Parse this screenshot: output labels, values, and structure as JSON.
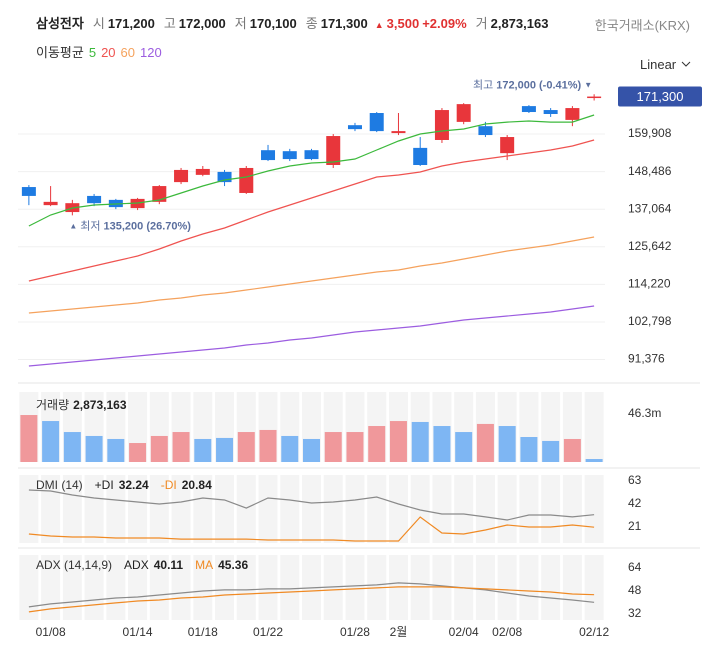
{
  "header": {
    "name": "삼성전자",
    "items": [
      {
        "label": "시",
        "value": "171,200"
      },
      {
        "label": "고",
        "value": "172,000"
      },
      {
        "label": "저",
        "value": "170,100"
      },
      {
        "label": "종",
        "value": "171,300"
      }
    ],
    "change": "3,500",
    "change_pct": "+2.09%",
    "volume_label": "거",
    "volume": "2,873,163",
    "exchange": "한국거래소(KRX)"
  },
  "scale_menu": "Linear",
  "chart_data": [
    {
      "type": "candlestick",
      "legend_title": "이동평균",
      "categories": [
        null,
        "01/08",
        null,
        null,
        null,
        "01/14",
        null,
        null,
        "01/18",
        null,
        null,
        "01/22",
        null,
        null,
        null,
        "01/28",
        null,
        "2월",
        null,
        null,
        "02/04",
        null,
        "02/08",
        null,
        null,
        null,
        "02/12"
      ],
      "open": [
        143800,
        138300,
        136200,
        141100,
        139900,
        137400,
        139300,
        145300,
        147500,
        148400,
        142000,
        155000,
        154700,
        155000,
        150500,
        162600,
        166300,
        160200,
        155700,
        158100,
        163600,
        162300,
        154100,
        168400,
        167200,
        164200,
        171200
      ],
      "high": [
        144400,
        144100,
        139900,
        141700,
        140200,
        140500,
        144400,
        149600,
        150200,
        149000,
        150200,
        156600,
        155400,
        155400,
        159900,
        163300,
        166600,
        166300,
        159000,
        167800,
        169300,
        163600,
        159600,
        168700,
        167800,
        168400,
        172000
      ],
      "low": [
        138300,
        138000,
        135200,
        138000,
        137100,
        136800,
        138600,
        144700,
        147100,
        144100,
        141700,
        151700,
        151700,
        152000,
        149600,
        160800,
        160500,
        159600,
        150200,
        157200,
        162900,
        159000,
        152000,
        166300,
        165100,
        162300,
        170100
      ],
      "close": [
        141100,
        139300,
        138900,
        138900,
        137700,
        140200,
        144100,
        149000,
        149300,
        145300,
        149600,
        152000,
        152300,
        152300,
        159300,
        161400,
        160800,
        160800,
        150500,
        167200,
        169000,
        159600,
        159000,
        166600,
        166000,
        167800,
        171300
      ],
      "up_color": "#e8363b",
      "down_color": "#1e7be2",
      "max_label": "최고",
      "max_text": "172,000 (-0.41%)",
      "min_label": "최저",
      "min_text": "135,200 (26.70%)",
      "ylim": [
        88200,
        173900
      ],
      "yticks": [
        {
          "value": 91376,
          "label": "91,376"
        },
        {
          "value": 102798,
          "label": "102,798"
        },
        {
          "value": 114220,
          "label": "114,220"
        },
        {
          "value": 125642,
          "label": "125,642"
        },
        {
          "value": 137064,
          "label": "137,064"
        },
        {
          "value": 148486,
          "label": "148,486"
        },
        {
          "value": 159908,
          "label": "159,908"
        }
      ],
      "grid": true,
      "series": [
        {
          "name": "5",
          "color": "#3cb93c",
          "values": [
            131960,
            135300,
            137430,
            138340,
            138640,
            138950,
            139860,
            141980,
            144110,
            145930,
            146850,
            148670,
            150190,
            151100,
            151400,
            152310,
            155050,
            157780,
            159910,
            160820,
            161430,
            162950,
            163550,
            163860,
            163550,
            163550,
            165680
          ]
        },
        {
          "name": "20",
          "color": "#ef5350",
          "values": [
            115250,
            116770,
            118290,
            119810,
            121330,
            122840,
            124970,
            127400,
            129530,
            131350,
            133780,
            136210,
            138340,
            140470,
            142590,
            144720,
            146850,
            147450,
            148360,
            150190,
            151400,
            152310,
            153220,
            154140,
            155050,
            156260,
            158090
          ]
        },
        {
          "name": "60",
          "color": "#f5a25d",
          "values": [
            105530,
            106140,
            106740,
            107350,
            107960,
            108570,
            109480,
            110090,
            111000,
            111600,
            112520,
            113430,
            114340,
            115250,
            116160,
            117070,
            117980,
            118590,
            119810,
            120720,
            121930,
            123150,
            124360,
            125280,
            126190,
            127400,
            128620
          ]
        },
        {
          "name": "120",
          "color": "#9c5de0",
          "values": [
            89430,
            90030,
            90640,
            91250,
            91860,
            92460,
            93070,
            93680,
            94290,
            94900,
            95810,
            96410,
            97330,
            97930,
            98840,
            99760,
            100360,
            100970,
            101580,
            102490,
            103400,
            104010,
            104620,
            105220,
            105830,
            106740,
            107650
          ]
        }
      ]
    },
    {
      "type": "bar",
      "title": "거래량",
      "title_value": "2,873,163",
      "values": [
        45300000,
        39500000,
        28900000,
        25100000,
        22200000,
        18300000,
        25100000,
        28900000,
        22200000,
        23200000,
        28900000,
        30900000,
        25100000,
        22200000,
        28900000,
        28900000,
        34700000,
        39500000,
        38600000,
        34700000,
        28900000,
        36700000,
        34700000,
        24100000,
        20300000,
        22200000,
        2873163
      ],
      "colors": [
        "#f0989b",
        "#7eb6f3",
        "#7eb6f3",
        "#7eb6f3",
        "#7eb6f3",
        "#f0989b",
        "#f0989b",
        "#f0989b",
        "#7eb6f3",
        "#7eb6f3",
        "#f0989b",
        "#f0989b",
        "#7eb6f3",
        "#7eb6f3",
        "#f0989b",
        "#f0989b",
        "#f0989b",
        "#f0989b",
        "#7eb6f3",
        "#7eb6f3",
        "#7eb6f3",
        "#f0989b",
        "#7eb6f3",
        "#7eb6f3",
        "#7eb6f3",
        "#f0989b",
        "#7eb6f3"
      ],
      "ylim": [
        0,
        67500000
      ],
      "yticks": [
        {
          "value": 46300000,
          "label": "46.3m"
        }
      ]
    },
    {
      "type": "line",
      "title": "DMI (14)",
      "ylim": [
        6.4,
        68.5
      ],
      "yticks": [
        21,
        42,
        63
      ],
      "series": [
        {
          "name": "+DI",
          "color": "#8a8a8a",
          "legend_value": "32.24",
          "values": [
            54.8,
            53.9,
            50.2,
            47.5,
            45.7,
            43.8,
            42.0,
            43.8,
            47.5,
            45.7,
            38.3,
            47.5,
            45.7,
            42.9,
            43.8,
            45.7,
            48.4,
            42.0,
            36.5,
            32.9,
            32.9,
            30.2,
            27.4,
            32.0,
            32.0,
            30.2,
            32.24
          ]
        },
        {
          "name": "-DI",
          "color": "#f08a24",
          "legend_value": "20.84",
          "values": [
            14.6,
            12.8,
            11.9,
            11.9,
            11.0,
            11.0,
            11.0,
            10.0,
            10.0,
            10.0,
            10.0,
            9.1,
            9.1,
            9.1,
            9.1,
            8.2,
            8.2,
            8.2,
            30.1,
            15.5,
            14.6,
            18.3,
            22.8,
            21.0,
            21.0,
            22.8,
            20.84
          ]
        }
      ]
    },
    {
      "type": "line",
      "title": "ADX (14,14,9)",
      "ylim": [
        27.8,
        73.0
      ],
      "yticks": [
        32,
        48,
        64
      ],
      "series": [
        {
          "name": "ADX",
          "color": "#8a8a8a",
          "legend_value": "40.11",
          "values": [
            36.9,
            39.0,
            40.3,
            41.7,
            43.1,
            43.8,
            45.2,
            46.6,
            48.0,
            48.7,
            48.7,
            49.4,
            49.4,
            50.1,
            50.8,
            51.5,
            52.2,
            53.6,
            52.9,
            51.5,
            50.1,
            48.7,
            46.6,
            44.5,
            43.1,
            41.7,
            40.11
          ]
        },
        {
          "name": "MA",
          "color": "#f08a24",
          "legend_value": "45.36",
          "values": [
            33.4,
            35.5,
            36.9,
            38.3,
            39.7,
            41.0,
            41.7,
            43.1,
            43.8,
            45.2,
            45.9,
            46.6,
            47.3,
            48.0,
            48.7,
            49.4,
            50.1,
            50.8,
            50.8,
            50.8,
            50.1,
            49.4,
            48.7,
            48.0,
            47.3,
            45.9,
            45.36
          ]
        }
      ]
    }
  ]
}
